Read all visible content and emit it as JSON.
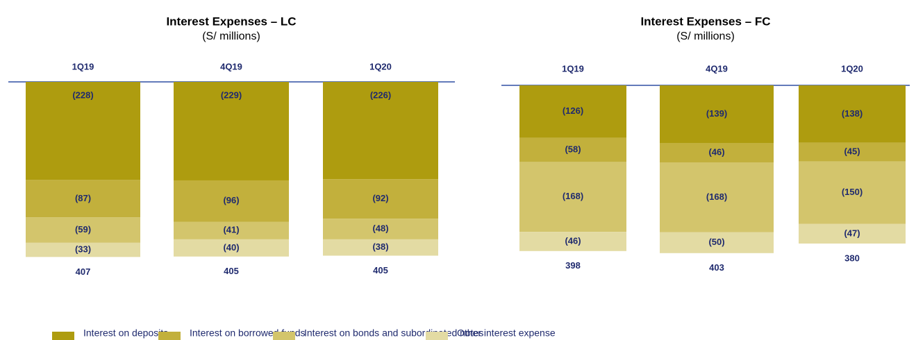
{
  "chart_data": [
    {
      "type": "bar",
      "title": "Interest Expenses – LC",
      "subtitle": "(S/ millions)",
      "categories": [
        "1Q19",
        "4Q19",
        "1Q20"
      ],
      "series": [
        {
          "name": "Interest on deposits",
          "color": "#ae9c0f",
          "values": [
            -228,
            -229,
            -226
          ],
          "value_labels": [
            "(228)",
            "(229)",
            "(226)"
          ]
        },
        {
          "name": "Interest on borrowed funds",
          "color": "#c2b03c",
          "values": [
            -87,
            -96,
            -92
          ],
          "value_labels": [
            "(87)",
            "(96)",
            "(92)"
          ]
        },
        {
          "name": "Interest on bonds and subordinated notes",
          "color": "#d3c56c",
          "values": [
            -59,
            -41,
            -48
          ],
          "value_labels": [
            "(59)",
            "(41)",
            "(48)"
          ]
        },
        {
          "name": "Other interest expense",
          "color": "#e3dba3",
          "values": [
            -33,
            -40,
            -38
          ],
          "value_labels": [
            "(33)",
            "(40)",
            "(38)"
          ]
        }
      ],
      "totals": [
        407,
        405,
        405
      ]
    },
    {
      "type": "bar",
      "title": "Interest Expenses – FC",
      "subtitle": "(S/ millions)",
      "categories": [
        "1Q19",
        "4Q19",
        "1Q20"
      ],
      "series": [
        {
          "values": [
            -126,
            -139,
            -138
          ],
          "value_labels": [
            "(126)",
            "(139)",
            "(138)"
          ]
        },
        {
          "values": [
            -58,
            -46,
            -45
          ],
          "value_labels": [
            "(58)",
            "(46)",
            "(45)"
          ]
        },
        {
          "values": [
            -168,
            -168,
            -150
          ],
          "value_labels": [
            "(168)",
            "(168)",
            "(150)"
          ]
        },
        {
          "values": [
            -46,
            -50,
            -47
          ],
          "value_labels": [
            "(46)",
            "(50)",
            "(47)"
          ]
        }
      ],
      "totals": [
        398,
        403,
        380
      ]
    }
  ]
}
